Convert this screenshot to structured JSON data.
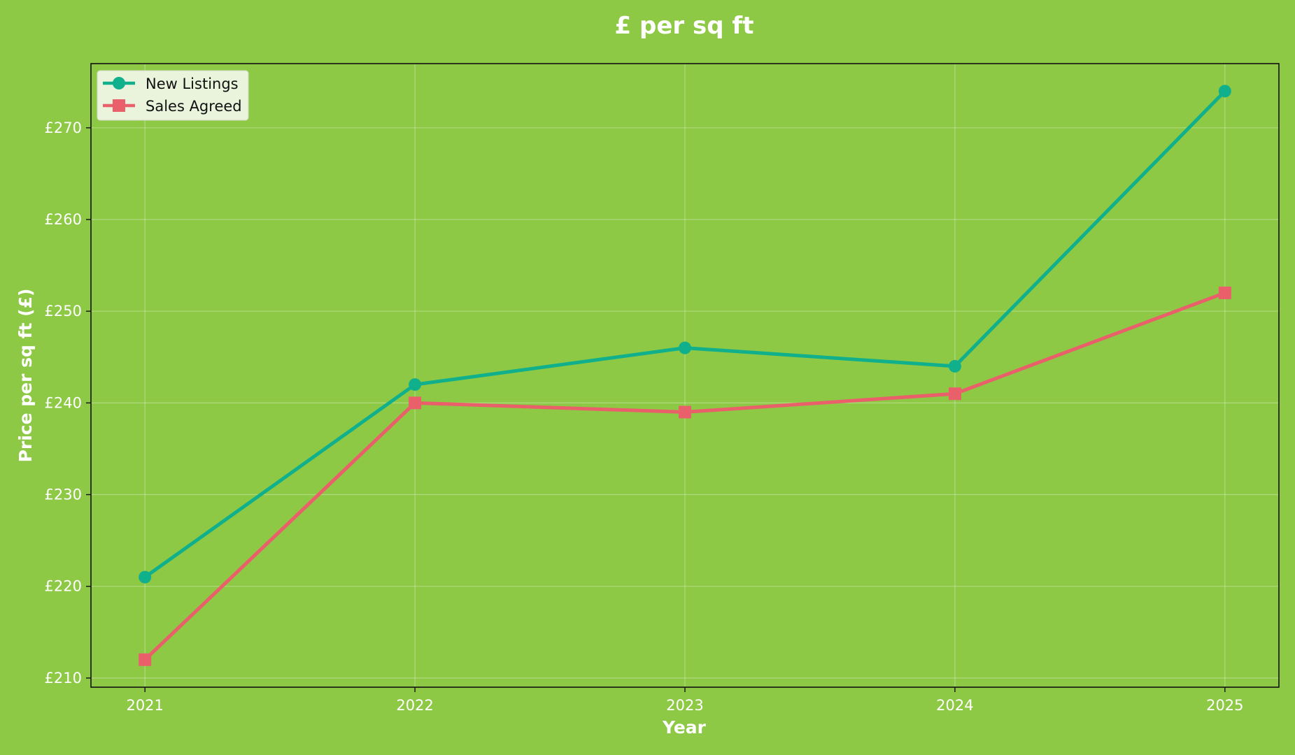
{
  "chart_data": {
    "type": "line",
    "title": "£ per sq ft",
    "xlabel": "Year",
    "ylabel": "Price per sq ft (£)",
    "x": [
      2021,
      2022,
      2023,
      2024,
      2025
    ],
    "x_tick_labels": [
      "2021",
      "2022",
      "2023",
      "2024",
      "2025"
    ],
    "y_ticks": [
      210,
      220,
      230,
      240,
      250,
      260,
      270
    ],
    "y_tick_labels": [
      "£210",
      "£220",
      "£230",
      "£240",
      "£250",
      "£260",
      "£270"
    ],
    "xlim": [
      2020.8,
      2025.2
    ],
    "ylim": [
      209,
      277
    ],
    "grid": true,
    "legend_position": "top-left",
    "background_color": "#8dc945",
    "series": [
      {
        "name": "New Listings",
        "values": [
          221,
          242,
          246,
          244,
          274
        ],
        "color": "#10b08c",
        "marker": "circle"
      },
      {
        "name": "Sales Agreed",
        "values": [
          212,
          240,
          239,
          241,
          252
        ],
        "color": "#e9606b",
        "marker": "square"
      }
    ]
  }
}
